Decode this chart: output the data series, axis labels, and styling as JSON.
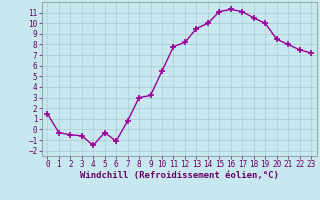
{
  "x": [
    0,
    1,
    2,
    3,
    4,
    5,
    6,
    7,
    8,
    9,
    10,
    11,
    12,
    13,
    14,
    15,
    16,
    17,
    18,
    19,
    20,
    21,
    22,
    23
  ],
  "y": [
    1.5,
    -0.3,
    -0.5,
    -0.6,
    -1.5,
    -0.3,
    -1.1,
    0.8,
    3.0,
    3.2,
    5.5,
    7.8,
    8.2,
    9.5,
    10.0,
    11.1,
    11.3,
    11.1,
    10.5,
    10.0,
    8.5,
    8.0,
    7.5,
    7.2
  ],
  "color": "#990099",
  "bg_color": "#c8e8ef",
  "grid_color": "#aacccc",
  "xlabel": "Windchill (Refroidissement éolien,°C)",
  "ylim": [
    -2.5,
    12
  ],
  "xlim": [
    -0.5,
    23.5
  ],
  "yticks": [
    -2,
    -1,
    0,
    1,
    2,
    3,
    4,
    5,
    6,
    7,
    8,
    9,
    10,
    11
  ],
  "xticks": [
    0,
    1,
    2,
    3,
    4,
    5,
    6,
    7,
    8,
    9,
    10,
    11,
    12,
    13,
    14,
    15,
    16,
    17,
    18,
    19,
    20,
    21,
    22,
    23
  ],
  "marker": "+",
  "markersize": 4,
  "linewidth": 1.0,
  "xlabel_fontsize": 6.5,
  "tick_fontsize": 5.5
}
